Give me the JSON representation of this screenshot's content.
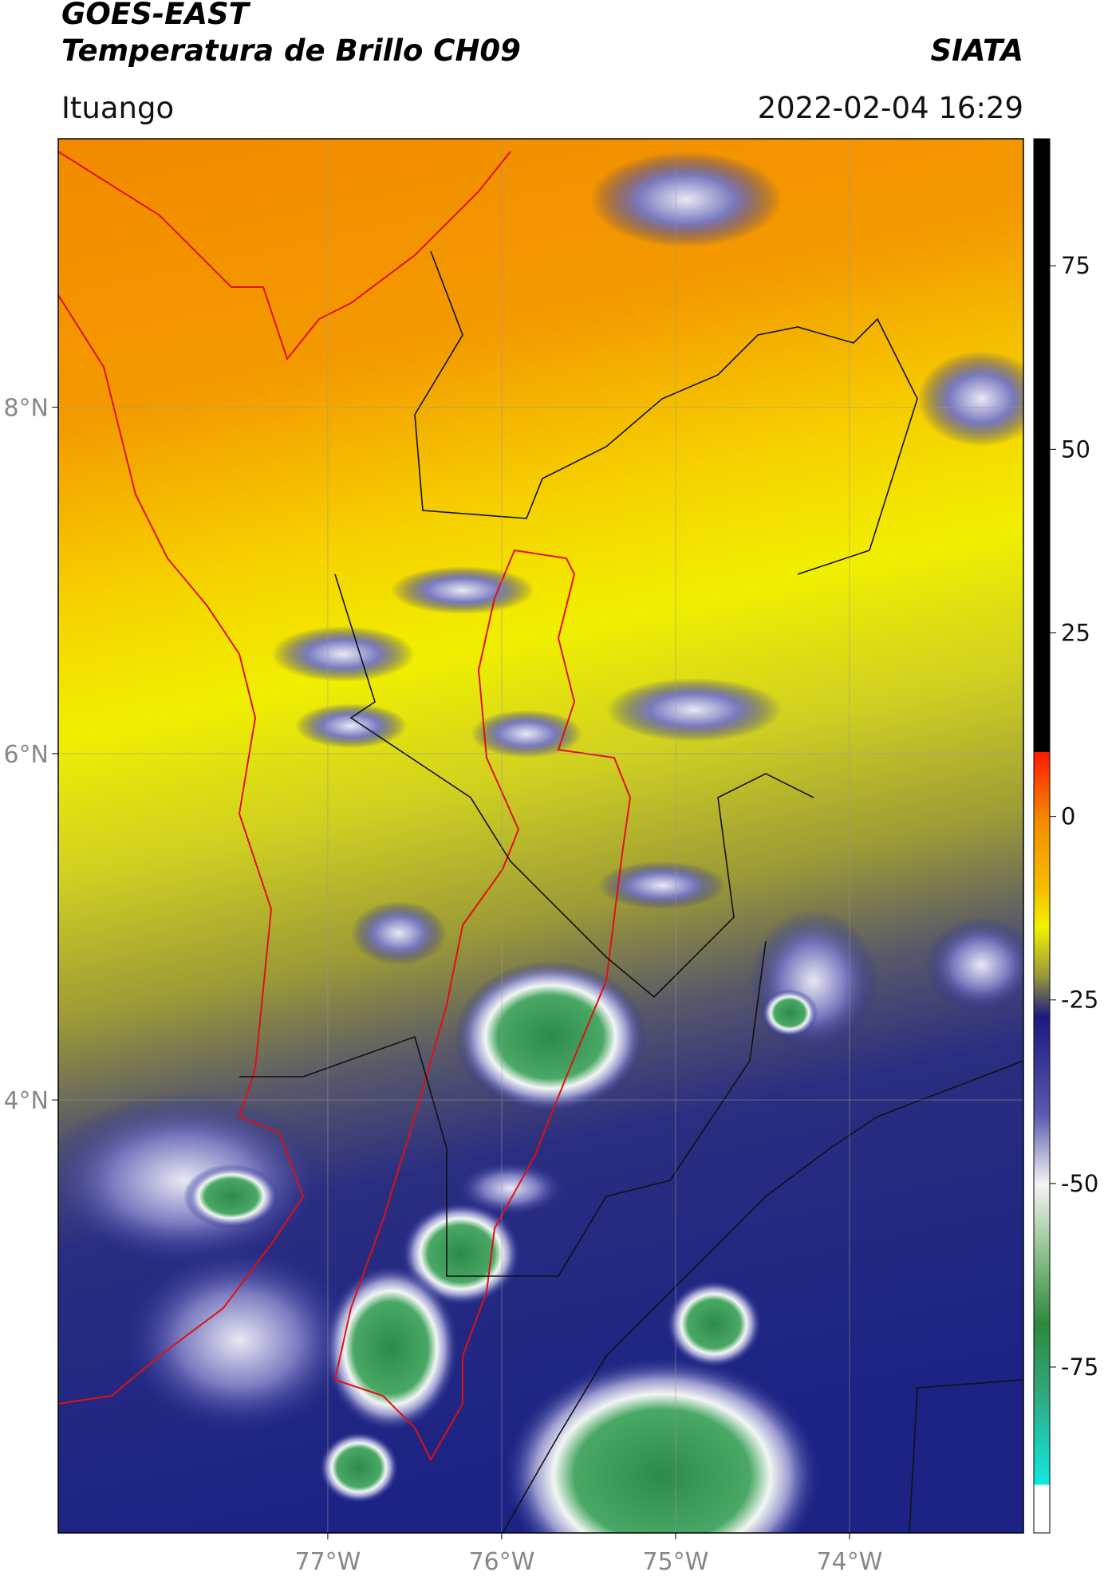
{
  "header": {
    "title": "GOES-EAST",
    "subtitle": "Temperatura de Brillo CH09",
    "source": "SIATA",
    "region": "Ituango",
    "datetime": "2022-02-04 16:29"
  },
  "map": {
    "xlim": [
      -78.55,
      -73.0
    ],
    "ylim": [
      1.5,
      9.55
    ],
    "xticks": [
      {
        "value": -77,
        "label": "77°W"
      },
      {
        "value": -76,
        "label": "76°W"
      },
      {
        "value": -75,
        "label": "75°W"
      },
      {
        "value": -74,
        "label": "74°W"
      }
    ],
    "yticks": [
      {
        "value": 8,
        "label": "8°N"
      },
      {
        "value": 6,
        "label": "6°N"
      },
      {
        "value": 4,
        "label": "4°N"
      }
    ],
    "grid": true
  },
  "colorbar": {
    "lim": [
      -97.6,
      92.3
    ],
    "ticks": [
      75,
      50,
      25,
      0,
      -25,
      -50,
      -75
    ]
  }
}
